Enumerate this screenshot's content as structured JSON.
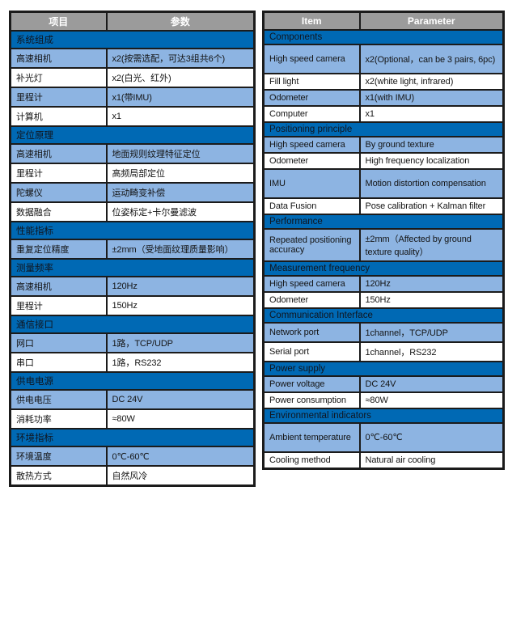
{
  "colors": {
    "page_bg": "#ffffff",
    "header_bg": "#9b9b9b",
    "header_text": "#ffffff",
    "section_bg": "#0069b4",
    "section_text": "#10151e",
    "row_shade_bg": "#8db4e2",
    "row_bg": "#ffffff",
    "border": "#1b1b1b",
    "text": "#141414"
  },
  "tables": [
    {
      "name": "spec-table-chinese",
      "columns": [
        "项目",
        "参数"
      ],
      "rows": [
        {
          "type": "section",
          "label": "系统组成"
        },
        {
          "type": "data",
          "label": "高速相机",
          "value": "x2(按需选配，可达3组共6个)"
        },
        {
          "type": "data",
          "label": "补光灯",
          "value": "x2(白光、红外)"
        },
        {
          "type": "data",
          "label": "里程计",
          "value": "x1(带IMU)"
        },
        {
          "type": "data",
          "label": "计算机",
          "value": "x1"
        },
        {
          "type": "section",
          "label": "定位原理"
        },
        {
          "type": "data",
          "label": "高速相机",
          "value": "地面规则纹理特征定位"
        },
        {
          "type": "data",
          "label": "里程计",
          "value": "高频局部定位"
        },
        {
          "type": "data",
          "label": "陀螺仪",
          "value": "运动畸变补偿"
        },
        {
          "type": "data",
          "label": "数据融合",
          "value": "位姿标定+卡尔曼滤波"
        },
        {
          "type": "section",
          "label": "性能指标"
        },
        {
          "type": "data",
          "label": "重复定位精度",
          "value": "±2mm（受地面纹理质量影响）"
        },
        {
          "type": "section",
          "label": "测量频率"
        },
        {
          "type": "data",
          "label": "高速相机",
          "value": "120Hz"
        },
        {
          "type": "data",
          "label": "里程计",
          "value": "150Hz"
        },
        {
          "type": "section",
          "label": "通信接口"
        },
        {
          "type": "data",
          "label": "网口",
          "value": "1路，TCP/UDP"
        },
        {
          "type": "data",
          "label": "串口",
          "value": "1路，RS232"
        },
        {
          "type": "section",
          "label": "供电电源"
        },
        {
          "type": "data",
          "label": "供电电压",
          "value": "DC 24V"
        },
        {
          "type": "data",
          "label": "消耗功率",
          "value": "≈80W"
        },
        {
          "type": "section",
          "label": "环境指标"
        },
        {
          "type": "data",
          "label": "环境温度",
          "value": "0℃-60℃"
        },
        {
          "type": "data",
          "label": "散热方式",
          "value": "自然风冷"
        }
      ]
    },
    {
      "name": "spec-table-english",
      "columns": [
        "Item",
        "Parameter"
      ],
      "rows": [
        {
          "type": "section",
          "label": "Components"
        },
        {
          "type": "data",
          "label": "High speed camera",
          "value": "x2(Optional，can be 3 pairs, 6pc)",
          "tall": true
        },
        {
          "type": "data",
          "label": "Fill light",
          "value": "x2(white light, infrared)"
        },
        {
          "type": "data",
          "label": "Odometer",
          "value": "x1(with IMU)"
        },
        {
          "type": "data",
          "label": "Computer",
          "value": "x1"
        },
        {
          "type": "section",
          "label": "Positioning principle"
        },
        {
          "type": "data",
          "label": "High speed camera",
          "value": "By ground texture"
        },
        {
          "type": "data",
          "label": "Odometer",
          "value": "High frequency localization"
        },
        {
          "type": "data",
          "label": "IMU",
          "value": "Motion distortion compensation",
          "tall": true
        },
        {
          "type": "data",
          "label": "Data Fusion",
          "value": "Pose calibration + Kalman filter"
        },
        {
          "type": "section",
          "label": "Performance"
        },
        {
          "type": "data",
          "label": "Repeated positioning accuracy",
          "value": "±2mm（Affected by ground texture quality）",
          "tall": true
        },
        {
          "type": "section",
          "label": "Measurement frequency"
        },
        {
          "type": "data",
          "label": "High speed camera",
          "value": "120Hz"
        },
        {
          "type": "data",
          "label": "Odometer",
          "value": "150Hz"
        },
        {
          "type": "section",
          "label": "Communication Interface"
        },
        {
          "type": "data",
          "label": "Network port",
          "value": "1channel，TCP/UDP"
        },
        {
          "type": "data",
          "label": "Serial port",
          "value": "1channel，RS232"
        },
        {
          "type": "section",
          "label": "Power supply"
        },
        {
          "type": "data",
          "label": "Power voltage",
          "value": "DC 24V"
        },
        {
          "type": "data",
          "label": "Power consumption",
          "value": "≈80W"
        },
        {
          "type": "section",
          "label": "Environmental indicators"
        },
        {
          "type": "data",
          "label": "Ambient temperature",
          "value": "0℃-60℃",
          "tall": true
        },
        {
          "type": "data",
          "label": "Cooling method",
          "value": "Natural air cooling"
        }
      ]
    }
  ]
}
